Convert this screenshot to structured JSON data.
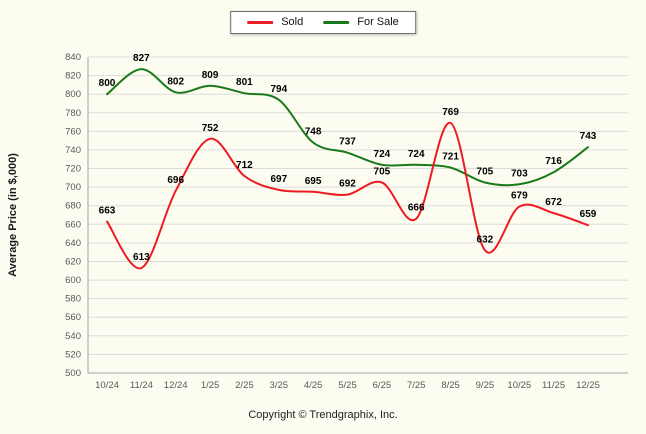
{
  "chart_data": {
    "type": "line",
    "categories": [
      "10/24",
      "11/24",
      "12/24",
      "1/25",
      "2/25",
      "3/25",
      "4/25",
      "5/25",
      "6/25",
      "7/25",
      "8/25",
      "9/25",
      "10/25",
      "11/25",
      "12/25"
    ],
    "series": [
      {
        "name": "Sold",
        "color": "#ed1c24",
        "values": [
          663,
          613,
          696,
          752,
          712,
          697,
          695,
          692,
          705,
          666,
          769,
          632,
          679,
          672,
          659
        ]
      },
      {
        "name": "For Sale",
        "color": "#1a7a1a",
        "values": [
          800,
          827,
          802,
          809,
          801,
          794,
          748,
          737,
          724,
          724,
          721,
          705,
          703,
          716,
          743
        ]
      }
    ],
    "title": "",
    "xlabel": "",
    "ylabel": "Average Price (in $,000)",
    "ylim": [
      500,
      840
    ],
    "ytick_step": 20,
    "grid": true,
    "legend_position": "top-center",
    "line_style": "smooth"
  },
  "footer": {
    "copyright": "Copyright © Trendgraphix, Inc."
  }
}
